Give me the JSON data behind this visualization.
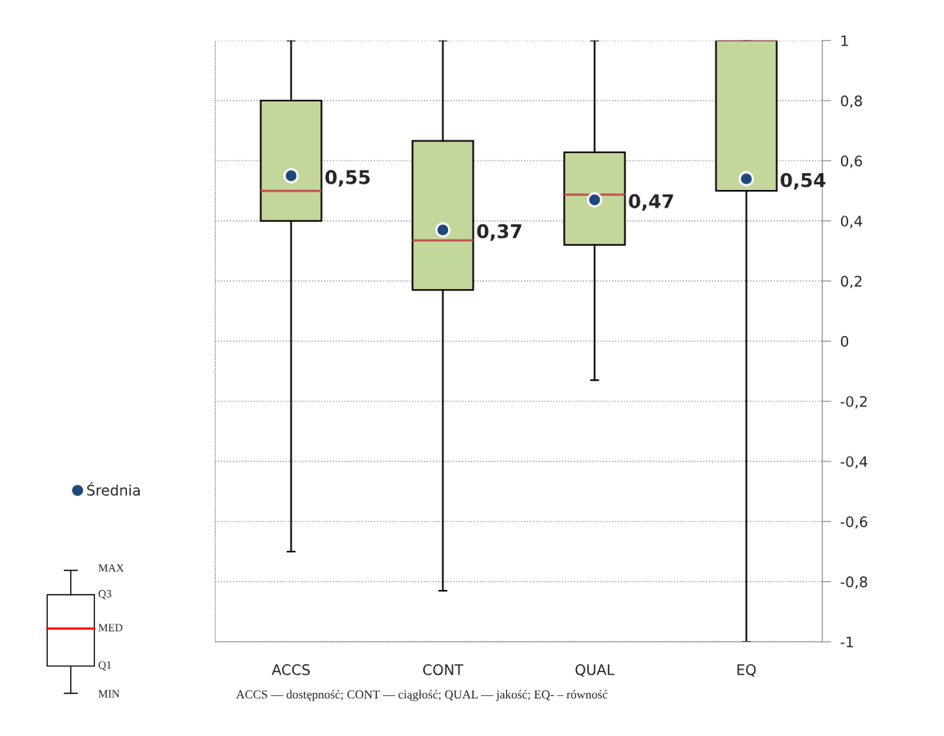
{
  "chart_data": {
    "type": "box",
    "categories": [
      "ACCS",
      "CONT",
      "QUAL",
      "EQ"
    ],
    "boxes": [
      {
        "low": -0.7,
        "q1": 0.4,
        "median": 0.5,
        "q3": 0.8,
        "high": 1
      },
      {
        "low": -0.83,
        "q1": 0.17,
        "median": 0.335,
        "q3": 0.666,
        "high": 1
      },
      {
        "low": -0.13,
        "q1": 0.32,
        "median": 0.487,
        "q3": 0.628,
        "high": 1
      },
      {
        "low": -1,
        "q1": 0.5,
        "median": 1,
        "q3": 1,
        "high": 1
      }
    ],
    "color": "#c4d79b",
    "series": [
      {
        "name": "Średnia",
        "type": "scatter",
        "color": "#1f497d",
        "values": [
          0.55,
          0.37,
          0.47,
          0.54
        ],
        "value_labels": [
          "0,55",
          "0,37",
          "0,47",
          "0,54"
        ]
      }
    ],
    "ylim": [
      -1,
      1
    ],
    "yticks": [
      {
        "value": -1,
        "label": "-1"
      },
      {
        "value": -0.8,
        "label": "-0,8"
      },
      {
        "value": -0.6,
        "label": "-0,6"
      },
      {
        "value": -0.4,
        "label": "-0,4"
      },
      {
        "value": -0.2,
        "label": "-0,2"
      },
      {
        "value": 0,
        "label": "0"
      },
      {
        "value": 0.2,
        "label": "0,2"
      },
      {
        "value": 0.4,
        "label": "0,4"
      },
      {
        "value": 0.6,
        "label": "0,6"
      },
      {
        "value": 0.8,
        "label": "0,8"
      },
      {
        "value": 1,
        "label": "1"
      }
    ],
    "grid": "y",
    "legend": "left",
    "annotations": [
      "MAX",
      "Q3",
      "MED",
      "Q1",
      "MIN",
      "ACCS — dostępność; CONT — ciągłość; QUAL — jakość; EQ- – równość"
    ]
  }
}
